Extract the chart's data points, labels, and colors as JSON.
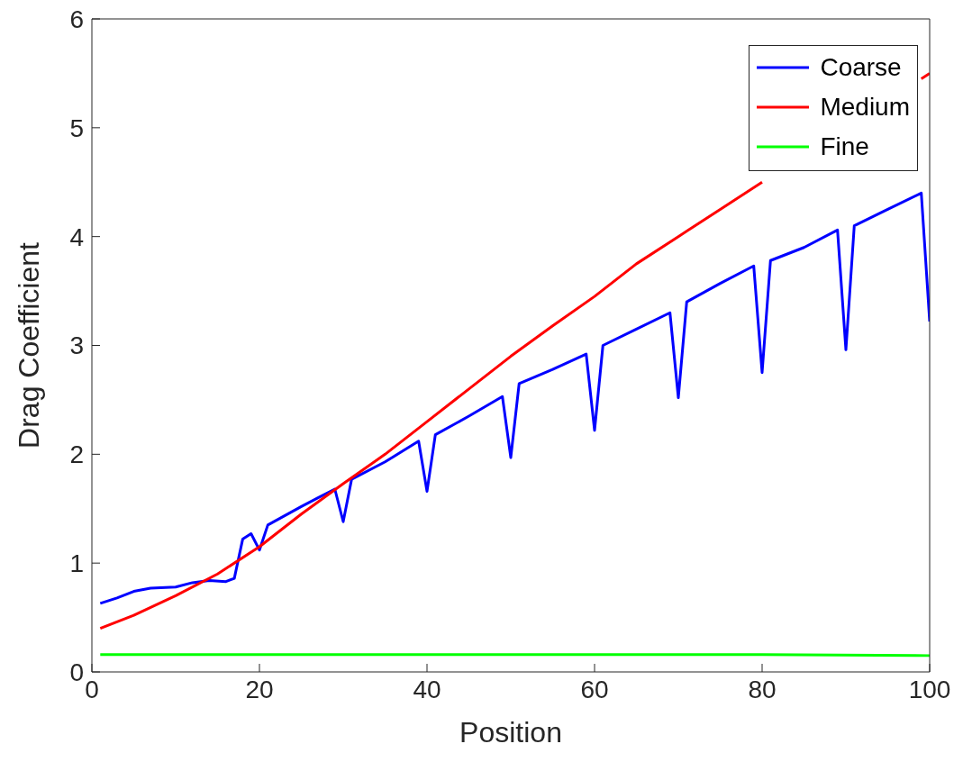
{
  "chart_data": {
    "type": "line",
    "xlabel": "Position",
    "ylabel": "Drag Coefficient",
    "xlim": [
      0,
      100
    ],
    "xticks": [
      0,
      20,
      40,
      60,
      80,
      100
    ],
    "ylim": [
      0,
      6
    ],
    "yticks": [
      0,
      1,
      2,
      3,
      4,
      5,
      6
    ],
    "grid": false,
    "legend": "top right",
    "marker": "none",
    "line_style": "solid",
    "series": [
      {
        "name": "Coarse",
        "color": "#0000ff",
        "x": [
          1,
          3,
          5,
          7,
          10,
          12,
          14,
          16,
          17,
          18,
          19,
          20,
          21,
          25,
          27,
          29,
          30,
          31,
          35,
          39,
          40,
          41,
          45,
          49,
          50,
          51,
          55,
          59,
          60,
          61,
          65,
          69,
          70,
          71,
          75,
          79,
          80,
          81,
          85,
          89,
          90,
          91,
          95,
          99,
          100
        ],
        "values": [
          0.63,
          0.68,
          0.74,
          0.77,
          0.78,
          0.82,
          0.84,
          0.83,
          0.86,
          1.22,
          1.27,
          1.12,
          1.35,
          1.52,
          1.6,
          1.68,
          1.38,
          1.77,
          1.93,
          2.12,
          1.66,
          2.18,
          2.35,
          2.53,
          1.97,
          2.65,
          2.78,
          2.92,
          2.22,
          3.0,
          3.15,
          3.3,
          2.52,
          3.4,
          3.57,
          3.73,
          2.75,
          3.78,
          3.9,
          4.06,
          2.96,
          4.1,
          4.25,
          4.4,
          3.22
        ]
      },
      {
        "name": "Medium",
        "color": "#ff0000",
        "x": [
          1,
          5,
          10,
          15,
          20,
          25,
          30,
          35,
          40,
          45,
          50,
          55,
          60,
          65,
          70,
          75,
          80,
          85,
          90,
          95,
          99,
          100
        ],
        "values": [
          0.4,
          0.52,
          0.7,
          0.9,
          1.15,
          1.45,
          1.73,
          2.0,
          2.3,
          2.6,
          2.9,
          3.18,
          3.45,
          3.75,
          4.0,
          4.25,
          4.5,
          null,
          null,
          null,
          5.45,
          5.5
        ]
      },
      {
        "name": "Fine",
        "color": "#00ff00",
        "x": [
          1,
          20,
          40,
          60,
          80,
          100
        ],
        "values": [
          0.16,
          0.16,
          0.16,
          0.16,
          0.16,
          0.15
        ]
      }
    ]
  }
}
